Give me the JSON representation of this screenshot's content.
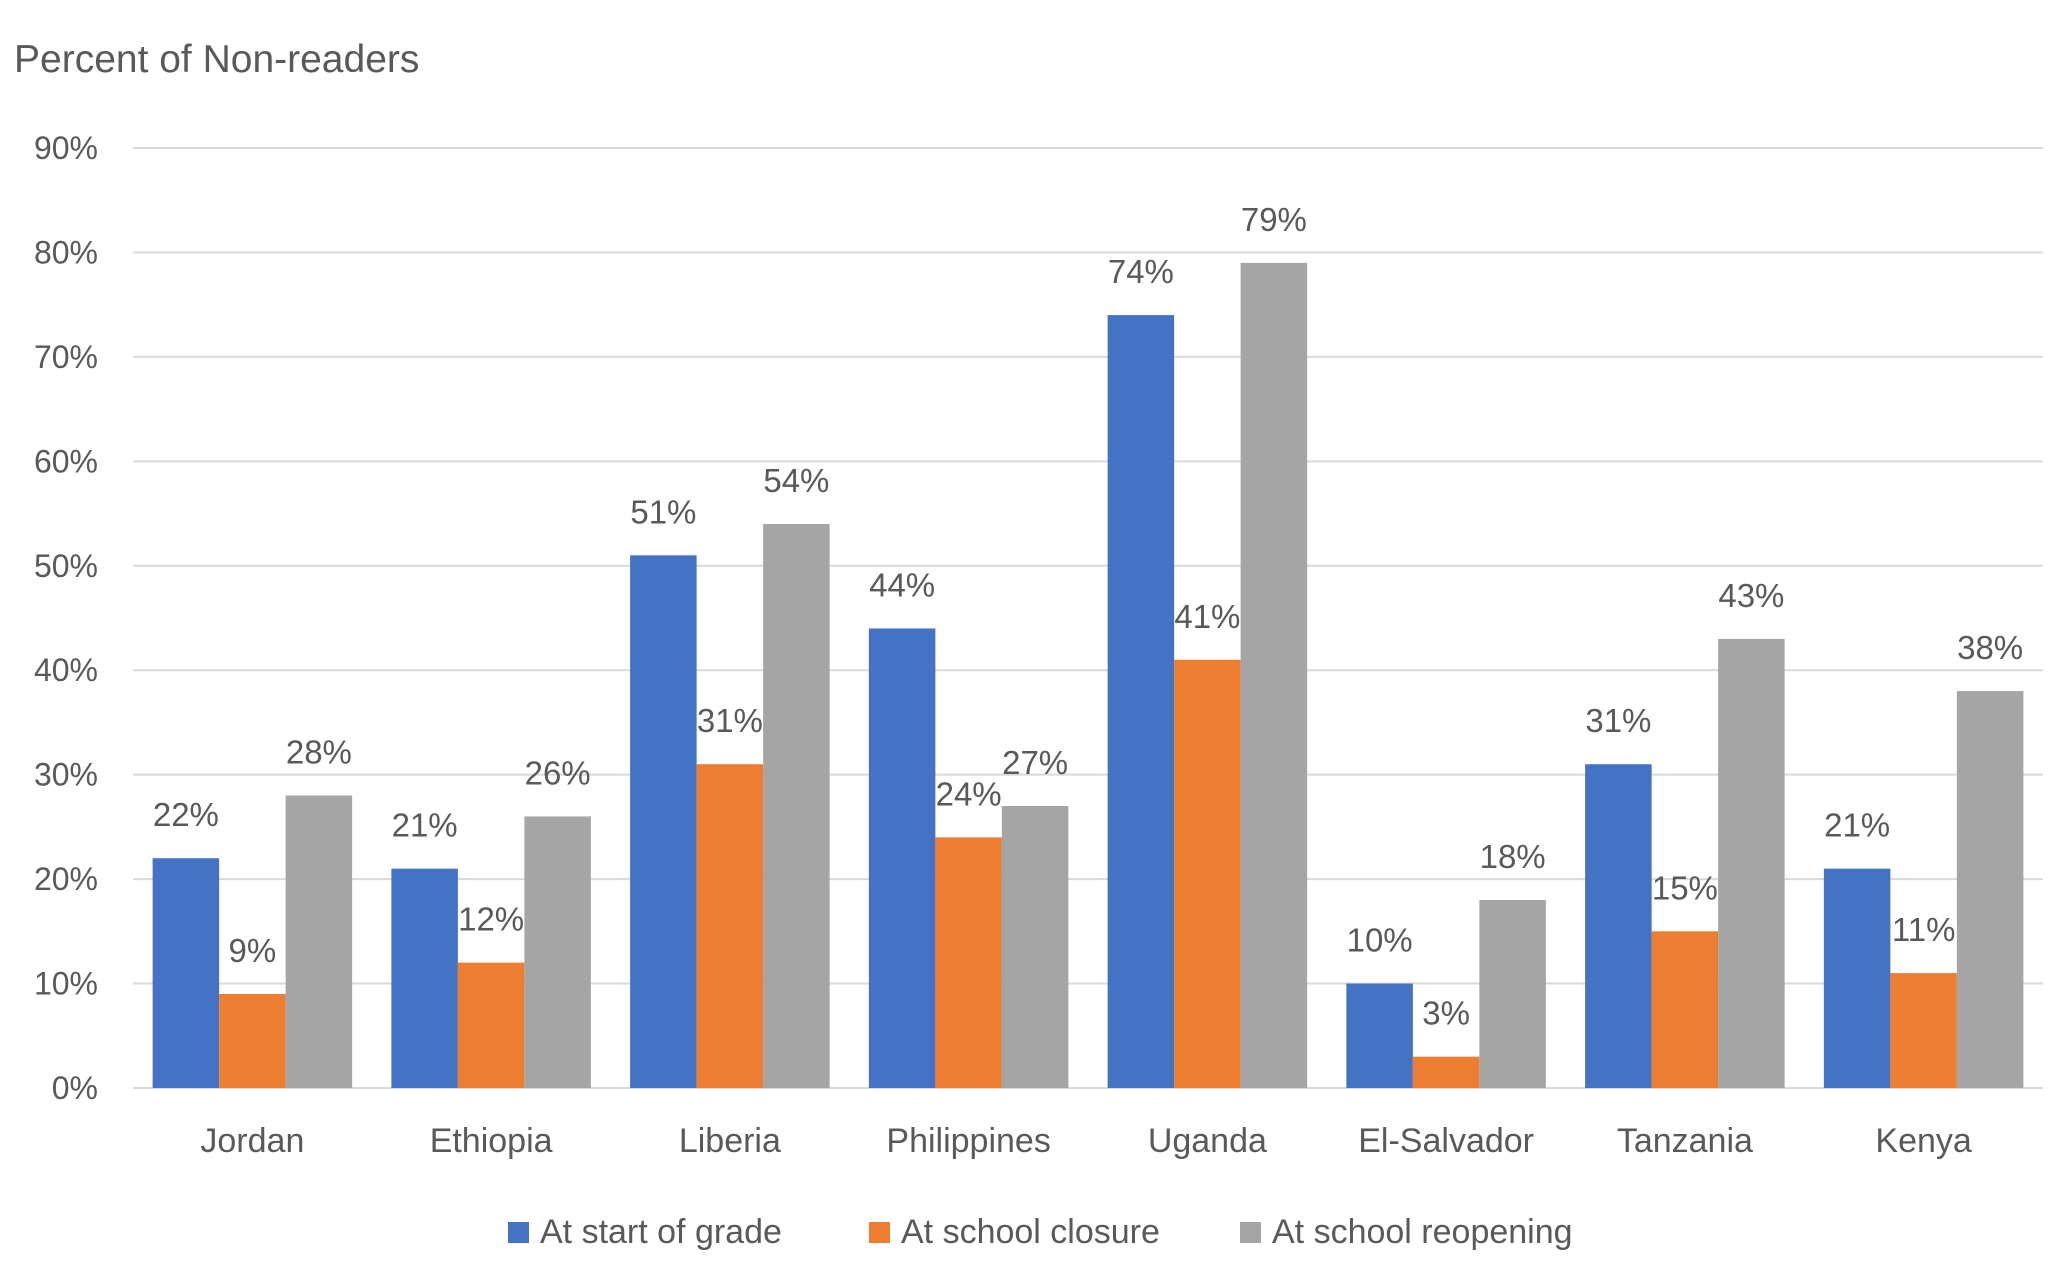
{
  "chart_data": {
    "type": "bar",
    "title": "Percent of Non-readers",
    "xlabel": "",
    "ylabel": "",
    "ylim": [
      0,
      90
    ],
    "yticks": [
      "0%",
      "10%",
      "20%",
      "30%",
      "40%",
      "50%",
      "60%",
      "70%",
      "80%",
      "90%"
    ],
    "grid": true,
    "legend_position": "bottom",
    "categories": [
      "Jordan",
      "Ethiopia",
      "Liberia",
      "Philippines",
      "Uganda",
      "El-Salvador",
      "Tanzania",
      "Kenya"
    ],
    "series": [
      {
        "name": "At start of grade",
        "color": "#4472C4",
        "values": [
          22,
          21,
          51,
          44,
          74,
          10,
          31,
          21
        ],
        "labels": [
          "22%",
          "21%",
          "51%",
          "44%",
          "74%",
          "10%",
          "31%",
          "21%"
        ]
      },
      {
        "name": "At school closure",
        "color": "#ED7D31",
        "values": [
          9,
          12,
          31,
          24,
          41,
          3,
          15,
          11
        ],
        "labels": [
          "9%",
          "12%",
          "31%",
          "24%",
          "41%",
          "3%",
          "15%",
          "11%"
        ]
      },
      {
        "name": "At school reopening",
        "color": "#A5A5A5",
        "values": [
          28,
          26,
          54,
          27,
          79,
          18,
          43,
          38
        ],
        "labels": [
          "28%",
          "26%",
          "54%",
          "27%",
          "79%",
          "18%",
          "43%",
          "38%"
        ]
      }
    ]
  },
  "colors": {
    "gridline": "#D9D9D9",
    "text": "#595959",
    "data_label": "#404040"
  }
}
